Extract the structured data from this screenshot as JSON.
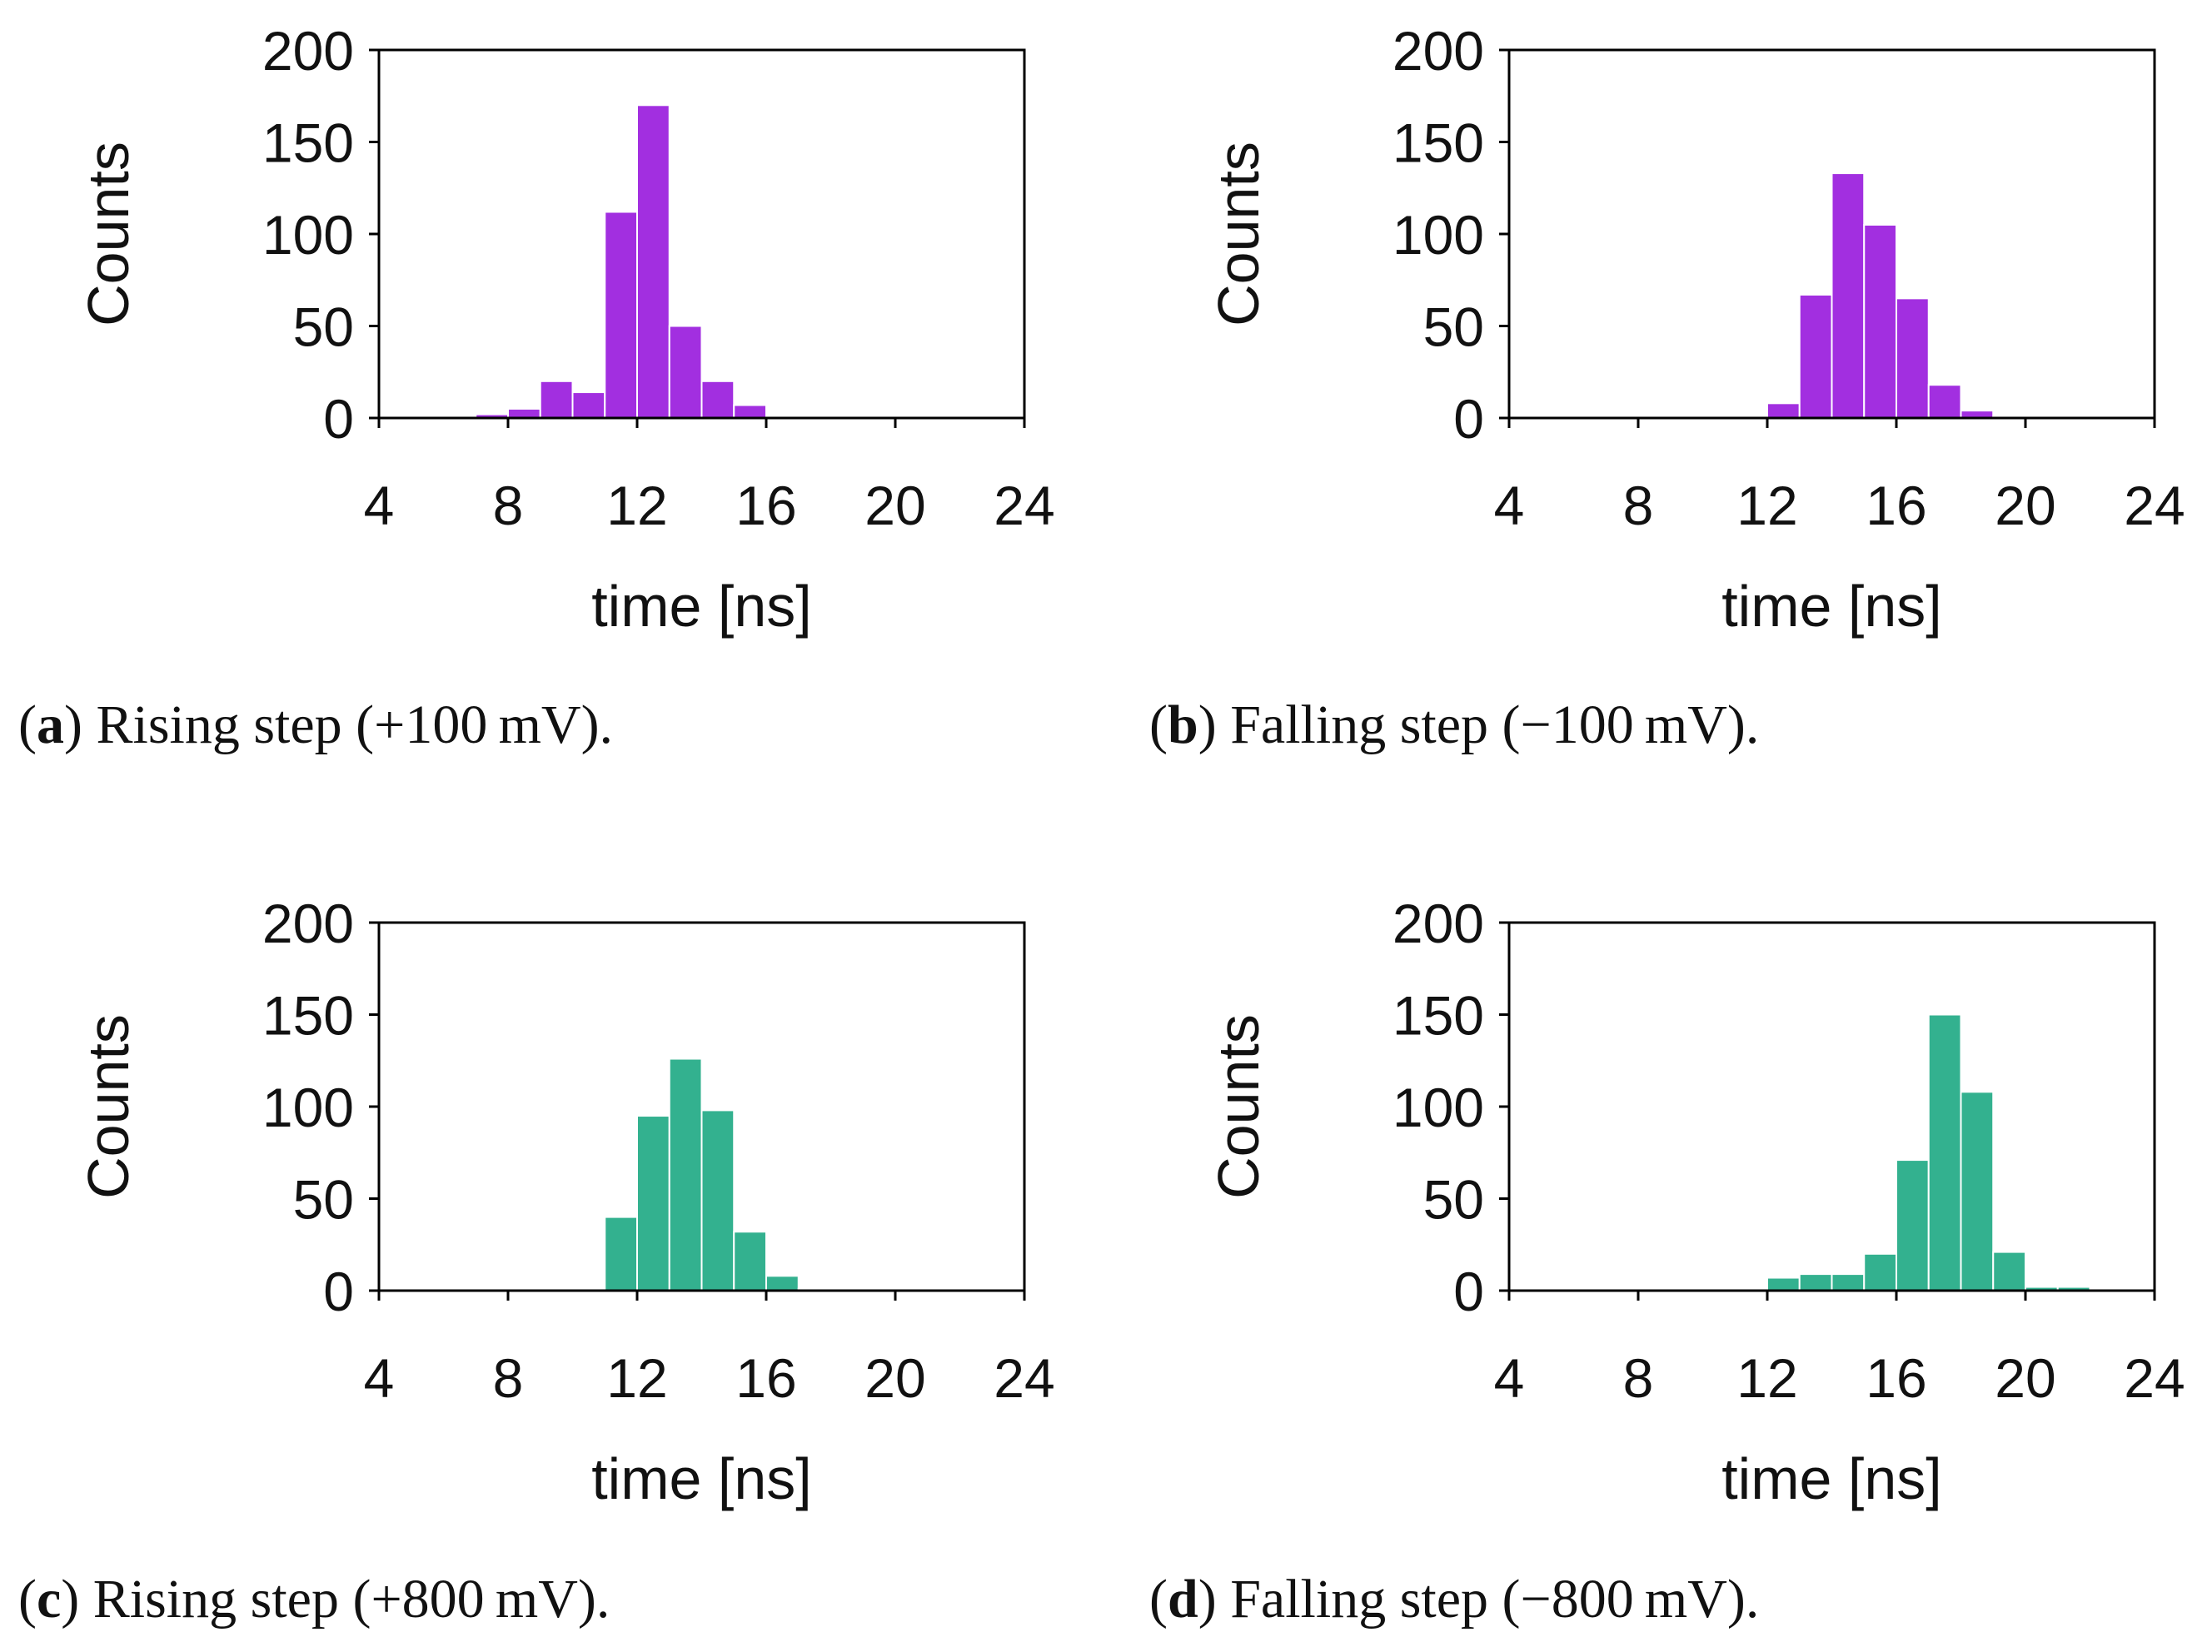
{
  "colors": {
    "purple": "#a22fe0",
    "green": "#33b18f",
    "axis": "#000000",
    "text": "#111111"
  },
  "chart_data": [
    {
      "id": "a",
      "type": "bar",
      "caption_letter": "a",
      "caption_text": " Rising step (+100 mV).",
      "color_key": "purple",
      "xlabel": "time [ns]",
      "ylabel": "Counts",
      "xlim": [
        4,
        24
      ],
      "ylim": [
        0,
        200
      ],
      "xticks": [
        4,
        8,
        12,
        16,
        20,
        24
      ],
      "yticks": [
        0,
        50,
        100,
        150,
        200
      ],
      "bin_width": 1,
      "bin_starts": [
        7,
        8,
        9,
        10,
        11,
        12,
        13,
        14,
        15,
        16
      ],
      "values": [
        2,
        5,
        20,
        14,
        112,
        170,
        50,
        20,
        7,
        0.5
      ]
    },
    {
      "id": "b",
      "type": "bar",
      "caption_letter": "b",
      "caption_text": " Falling step (−100 mV).",
      "color_key": "purple",
      "xlabel": "time [ns]",
      "ylabel": "Counts",
      "xlim": [
        4,
        24
      ],
      "ylim": [
        0,
        200
      ],
      "xticks": [
        4,
        8,
        12,
        16,
        20,
        24
      ],
      "yticks": [
        0,
        50,
        100,
        150,
        200
      ],
      "bin_width": 1,
      "bin_starts": [
        12,
        13,
        14,
        15,
        16,
        17,
        18,
        19
      ],
      "values": [
        8,
        67,
        133,
        105,
        65,
        18,
        4,
        0.5
      ]
    },
    {
      "id": "c",
      "type": "bar",
      "caption_letter": "c",
      "caption_text": " Rising step (+800 mV).",
      "color_key": "green",
      "xlabel": "time [ns]",
      "ylabel": "Counts",
      "xlim": [
        4,
        24
      ],
      "ylim": [
        0,
        200
      ],
      "xticks": [
        4,
        8,
        12,
        16,
        20,
        24
      ],
      "yticks": [
        0,
        50,
        100,
        150,
        200
      ],
      "bin_width": 1,
      "bin_starts": [
        10,
        11,
        12,
        13,
        14,
        15,
        16,
        17
      ],
      "values": [
        0.5,
        40,
        95,
        126,
        98,
        32,
        8,
        1
      ]
    },
    {
      "id": "d",
      "type": "bar",
      "caption_letter": "d",
      "caption_text": " Falling step (−800 mV).",
      "color_key": "green",
      "xlabel": "time [ns]",
      "ylabel": "Counts",
      "xlim": [
        4,
        24
      ],
      "ylim": [
        0,
        200
      ],
      "xticks": [
        4,
        8,
        12,
        16,
        20,
        24
      ],
      "yticks": [
        0,
        50,
        100,
        150,
        200
      ],
      "bin_width": 1,
      "bin_starts": [
        11,
        12,
        13,
        14,
        15,
        16,
        17,
        18,
        19,
        20,
        21
      ],
      "values": [
        1,
        7,
        9,
        9,
        20,
        71,
        150,
        108,
        21,
        2,
        2
      ]
    }
  ]
}
